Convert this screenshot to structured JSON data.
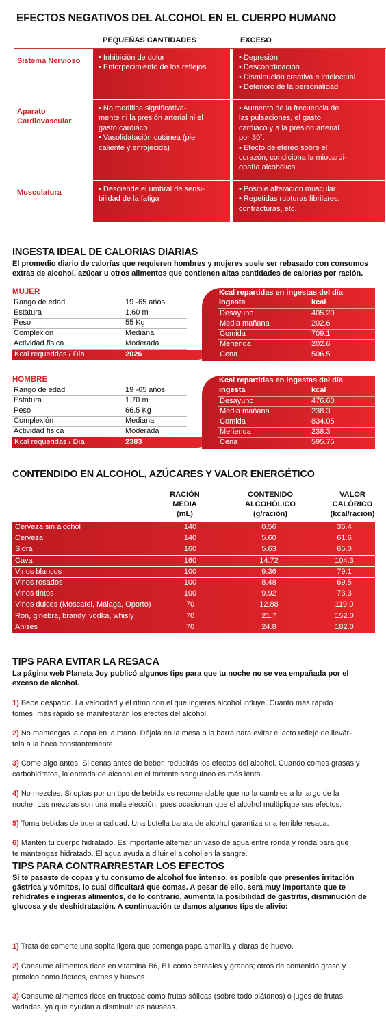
{
  "title": "EFECTOS NEGATIVOS DEL ALCOHOL EN EL CUERPO HUMANO",
  "effects": {
    "col_small": "PEQUEÑAS CANTIDADES",
    "col_excess": "EXCESO",
    "rows": [
      {
        "system": "Sistema Nervioso",
        "small": [
          "• Inhibición de dolor",
          "• Entorpecimiento de los reflejos"
        ],
        "excess": [
          "• Depresión",
          "• Descoordinación",
          "• Disminución creativa e intelectual",
          "• Deterioro de la personalidad"
        ]
      },
      {
        "system": "Aparato Cardiovascular",
        "small": [
          "• No modifica significativa-",
          "mente ni la presión arterial ni el",
          "gasto cardiaco",
          "• Vasolidatación cutánea (piel",
          "caliente y enrojecida)"
        ],
        "excess": [
          "• Aumento de la frecuencia de",
          "las pulsaciones, el gasto",
          "cardiaco y a la presión arterial",
          "por 30˚.",
          "• Efecto deletéreo sobre el",
          "corazón, condiciona la miocardi-",
          "opatía alcohólica"
        ]
      },
      {
        "system": "Musculatura",
        "small": [
          "• Desciende el umbral de sensi-",
          "bilidad de la fatiga"
        ],
        "excess": [
          "• Posible alteración muscular",
          "• Repetidas rupturas fibrilares,",
          "contracturas, etc."
        ]
      }
    ]
  },
  "calories": {
    "title": "INGESTA IDEAL DE CALORIAS DIARIAS",
    "intro": "El promedio diario de calorías que requieren hombres y mujeres suele ser rebasado con consumos extras de alcohol, azúcar u otros alimentos que contienen altas cantidades de calorías por ración.",
    "profiles": [
      {
        "label": "MUJER",
        "rows": [
          [
            "Rango de edad",
            "19 -65 años"
          ],
          [
            "Estatura",
            "1.60 m"
          ],
          [
            "Peso",
            "55 Kg"
          ],
          [
            "Complexión",
            "Mediana"
          ],
          [
            "Actividad física",
            "Moderada"
          ]
        ],
        "req_label": "Kcal requeridas / Día",
        "req_value": "2026",
        "meals_title": "Kcal repartidas en ingestas del día",
        "meals_head": [
          "Ingesta",
          "kcal"
        ],
        "meals": [
          [
            "Desayuno",
            "405.20"
          ],
          [
            "Media mañana",
            "202.6"
          ],
          [
            "Comida",
            "709.1"
          ],
          [
            "Merienda",
            "202.6"
          ],
          [
            "Cena",
            "506.5"
          ]
        ]
      },
      {
        "label": "HOMBRE",
        "rows": [
          [
            "Rango de edad",
            "19 -65 años"
          ],
          [
            "Estatura",
            "1.70 m"
          ],
          [
            "Peso",
            "66.5 Kg"
          ],
          [
            "Complexión",
            "Mediana"
          ],
          [
            "Actividad física",
            "Moderada"
          ]
        ],
        "req_label": "Kcal requeridas / Día",
        "req_value": "2383",
        "meals_title": "Kcal repartidas en ingestas del día",
        "meals_head": [
          "ingesta",
          "kcal"
        ],
        "meals": [
          [
            "Desayuno",
            "476.60"
          ],
          [
            "Media mañana",
            "238.3"
          ],
          [
            "Comida",
            "834.05"
          ],
          [
            "Merienda",
            "238.3"
          ],
          [
            "Cena",
            "595.75"
          ]
        ]
      }
    ]
  },
  "alcohol": {
    "title": "CONTENDIDO EN ALCOHOL, AZÚCARES Y VALOR ENERGÉTICO",
    "headers": [
      [
        "RACIÓN",
        "MEDIA",
        "(mL)"
      ],
      [
        "CONTENIDO",
        "ALCOHÓLICO",
        "(g/ración)"
      ],
      [
        "VALOR",
        "CALÓRICO",
        "(kcal/ración)"
      ]
    ],
    "rows": [
      [
        "Cerveza sin alcohol",
        "140",
        "0.56",
        "36.4"
      ],
      [
        "Cerveza",
        "140",
        "5.60",
        "61.6"
      ],
      [
        "Sidra",
        "160",
        "5.63",
        "65.0"
      ],
      [
        "Cava",
        "160",
        "14.72",
        "104.3"
      ],
      [
        "Vinos blancos",
        "100",
        "9.36",
        "79.1"
      ],
      [
        "Vinos rosados",
        "100",
        "8.48",
        "69.5"
      ],
      [
        "Vinos tintos",
        "100",
        "9.92",
        "73.3"
      ],
      [
        "Vinos dulces (Moscatel, Málaga, Oporto)",
        "70",
        "12.88",
        "119.0"
      ],
      [
        "Ron, ginebra, brandy, vodka, whisly",
        "70",
        "21.7",
        "152.0"
      ],
      [
        "Anises",
        "70",
        "24.8",
        "182.0"
      ]
    ]
  },
  "hangover": {
    "title": "TIPS PARA EVITAR LA RESACA",
    "intro": "La página web Planeta Joy publicó algunos tips para que tu noche no se vea empañada por el exceso de alcohol.",
    "tips": [
      {
        "n": "1)",
        "lines": [
          " Bebe despacio. La velocidad y el ritmo con el que ingieres alcohol influye. Cuanto más rápido",
          "tomes, más rápido se manifestarán los efectos del alcohol."
        ]
      },
      {
        "n": "2)",
        "lines": [
          " No mantengas la copa en la mano. Déjala en la mesa o la barra para evitar el acto reflejo de llevár-",
          "tela a la boca constantemente."
        ]
      },
      {
        "n": "3)",
        "lines": [
          " Come algo antes. Si cenas antes de beber, reducirás los efectos del alcohol. Cuando comes grasas y",
          "carbohidratos, la entrada de alcohol en el torrente sanguíneo es más lenta."
        ]
      },
      {
        "n": "4)",
        "lines": [
          " No mezcles. Si optas por un tipo de bebida es recomendable que no la cambies a lo largo de la",
          "noche. Las mezclas son una mala elección, pues ocasionan que el alcohol multiplique sus efectos."
        ]
      },
      {
        "n": "5)",
        "lines": [
          " Toma bebidas de buena calidad. Una botella barata de alcohol garantiza una terrible resaca."
        ]
      },
      {
        "n": "6)",
        "lines": [
          " Mantén tu cuerpo hidratado. Es importante alternar un vaso de agua entre ronda y ronda para que",
          "te mantengas hidratado. El agua ayuda a diluir el alcohol en la sangre."
        ]
      }
    ]
  },
  "counter": {
    "title": "TIPS PARA CONTRARRESTAR LOS EFECTOS",
    "intro": "Si te pasaste de copas y tu consumo de alcohol fue intenso, es posible que presentes irritación gástrica y vómitos, lo cual dificultará que comas. A pesar de ello, será muy importante que te rehidrates e ingieras alimentos, de lo contrario, aumenta la posibilidad de gastritis, disminución de glucosa y de deshidratación. A continuación te damos algunos tips de alivio:",
    "tips": [
      {
        "n": "1)",
        "lines": [
          " Trata de comerte una sopita ligera que contenga papa amarilla y claras de huevo."
        ]
      },
      {
        "n": "2)",
        "lines": [
          " Consume alimentos ricos en vitamina B6, B1 como cereales y granos; otros de contenido graso y",
          "proteico como lácteos, carnes y huevos."
        ]
      },
      {
        "n": "3)",
        "lines": [
          " Consume alimentos ricos en fructosa como frutas sólidas (sobre todo plátanos) o jugos de frutas",
          "variadas, ya que ayudan a disminuir las náuseas."
        ]
      }
    ]
  }
}
